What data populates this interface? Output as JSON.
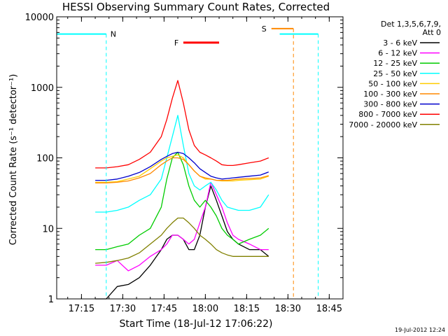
{
  "chart_data": {
    "type": "line",
    "title": "HESSI Observing Summary Count Rates, Corrected",
    "xlabel": "Start Time (18-Jul-12 17:06:22)",
    "ylabel": "Corrected Count Rate (s⁻¹ detector⁻¹)",
    "yscale": "log",
    "ylim": [
      1,
      10000
    ],
    "xlim": [
      "17:06",
      "18:50"
    ],
    "x_ticks": [
      "17:15",
      "17:30",
      "17:45",
      "18:00",
      "18:15",
      "18:30",
      "18:45"
    ],
    "y_ticks": [
      "1",
      "10",
      "100",
      "1000",
      "10000"
    ],
    "grid": false,
    "legend_header": [
      "Det 1,3,5,6,7,9,",
      "Att 0"
    ],
    "legend_position": "right",
    "timestamp": "19-Jul-2012 12:24",
    "x": [
      "17:20",
      "17:24",
      "17:28",
      "17:32",
      "17:36",
      "17:40",
      "17:44",
      "17:46",
      "17:48",
      "17:50",
      "17:52",
      "17:54",
      "17:56",
      "17:58",
      "18:00",
      "18:02",
      "18:04",
      "18:06",
      "18:08",
      "18:10",
      "18:12",
      "18:16",
      "18:20",
      "18:23"
    ],
    "series": [
      {
        "name": "3 - 6 keV",
        "color": "#000000",
        "values": [
          1.0,
          1.0,
          1.5,
          1.6,
          2.0,
          3.0,
          5,
          7,
          8,
          8,
          7,
          5,
          5,
          8,
          20,
          40,
          25,
          15,
          9,
          7,
          6,
          5,
          5,
          4
        ]
      },
      {
        "name": "6 - 12 keV",
        "color": "#ff00ff",
        "values": [
          3,
          3,
          3.5,
          2.5,
          3,
          4,
          5,
          6,
          8,
          8,
          7,
          6,
          7,
          12,
          20,
          45,
          30,
          20,
          12,
          8,
          7,
          6,
          5,
          5
        ]
      },
      {
        "name": "12 - 25 keV",
        "color": "#00cc00",
        "values": [
          5,
          5,
          5.5,
          6,
          8,
          10,
          20,
          50,
          100,
          120,
          80,
          40,
          25,
          20,
          25,
          20,
          15,
          10,
          8,
          7,
          6,
          7,
          8,
          10
        ]
      },
      {
        "name": "25 - 50 keV",
        "color": "#00ffff",
        "values": [
          17,
          17,
          18,
          20,
          25,
          30,
          50,
          100,
          200,
          400,
          150,
          60,
          40,
          35,
          40,
          45,
          35,
          25,
          20,
          19,
          18,
          18,
          20,
          30
        ]
      },
      {
        "name": "50 - 100 keV",
        "color": "#ffcc00",
        "values": [
          45,
          45,
          46,
          50,
          55,
          70,
          90,
          100,
          105,
          110,
          100,
          80,
          65,
          55,
          50,
          50,
          48,
          47,
          47,
          47,
          48,
          49,
          50,
          55
        ]
      },
      {
        "name": "100 - 300 keV",
        "color": "#ff8800",
        "values": [
          44,
          44,
          45,
          47,
          52,
          60,
          80,
          90,
          100,
          100,
          95,
          80,
          65,
          55,
          52,
          50,
          48,
          48,
          48,
          49,
          50,
          51,
          52,
          56
        ]
      },
      {
        "name": "300 - 800 keV",
        "color": "#0000cc",
        "values": [
          48,
          48,
          50,
          55,
          62,
          75,
          95,
          105,
          115,
          120,
          115,
          100,
          85,
          70,
          62,
          55,
          52,
          50,
          51,
          52,
          53,
          55,
          57,
          63
        ]
      },
      {
        "name": "800 - 7000 keV",
        "color": "#ff0000",
        "values": [
          72,
          72,
          75,
          80,
          95,
          120,
          200,
          350,
          700,
          1250,
          600,
          250,
          150,
          120,
          110,
          100,
          90,
          80,
          78,
          78,
          80,
          85,
          90,
          100
        ]
      },
      {
        "name": "7000 - 20000 keV",
        "color": "#808000",
        "values": [
          3.2,
          3.3,
          3.5,
          3.8,
          4.5,
          6,
          8,
          10,
          12,
          14,
          14,
          12,
          10,
          8,
          7,
          6,
          5,
          4.5,
          4.2,
          4,
          4,
          4,
          4,
          4
        ]
      }
    ],
    "annotations": {
      "night_label": "N",
      "flare_label": "F",
      "saa_label": "S",
      "night_color": "#00ffff",
      "flare_color": "#ff0000",
      "saa_color": "#ff8800"
    }
  }
}
